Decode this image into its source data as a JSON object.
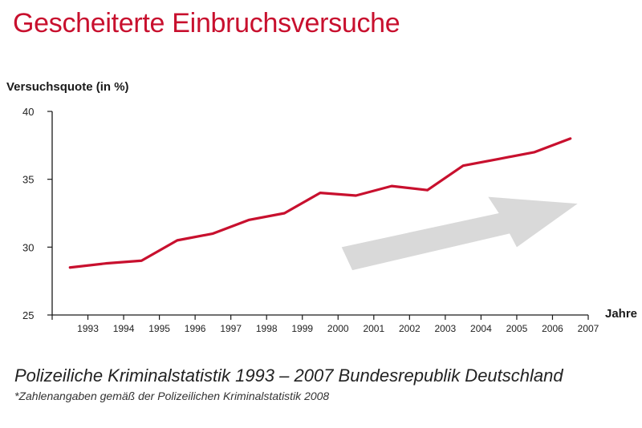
{
  "title": "Gescheiterte Einbruchsversuche",
  "colors": {
    "title": "#c8102e",
    "line": "#c8102e",
    "arrow": "#d9d9d9",
    "axis": "#1a1a1a"
  },
  "footer": {
    "main": "Polizeiliche Kriminalstatistik 1993 – 2007 Bundesrepublik Deutschland",
    "note": "*Zahlenangaben gemäß der Polizeilichen Kriminalstatistik 2008"
  },
  "chart_data": {
    "type": "line",
    "ylabel": "Versuchsquote (in %)",
    "xlabel": "Jahre",
    "ylim": [
      25,
      40
    ],
    "yticks": [
      25,
      30,
      35,
      40
    ],
    "xticks": [
      "1993",
      "1994",
      "1995",
      "1996",
      "1997",
      "1998",
      "1999",
      "2000",
      "2001",
      "2002",
      "2003",
      "2004",
      "2005",
      "2006",
      "2007"
    ],
    "grid": false,
    "series": [
      {
        "x": [
          1992.5,
          1993.5,
          1994.5,
          1995.5,
          1996.5,
          1997.5,
          1998.5,
          1999.5,
          2000.5,
          2001.5,
          2002.5,
          2003.5,
          2004.5,
          2005.5,
          2006.5
        ],
        "values": [
          28.5,
          28.8,
          29.0,
          30.5,
          31.0,
          32.0,
          32.5,
          34.0,
          33.8,
          34.5,
          34.2,
          36.0,
          36.5,
          37.0,
          38.0
        ]
      }
    ],
    "annotations": [
      "upward-trend-arrow"
    ]
  }
}
